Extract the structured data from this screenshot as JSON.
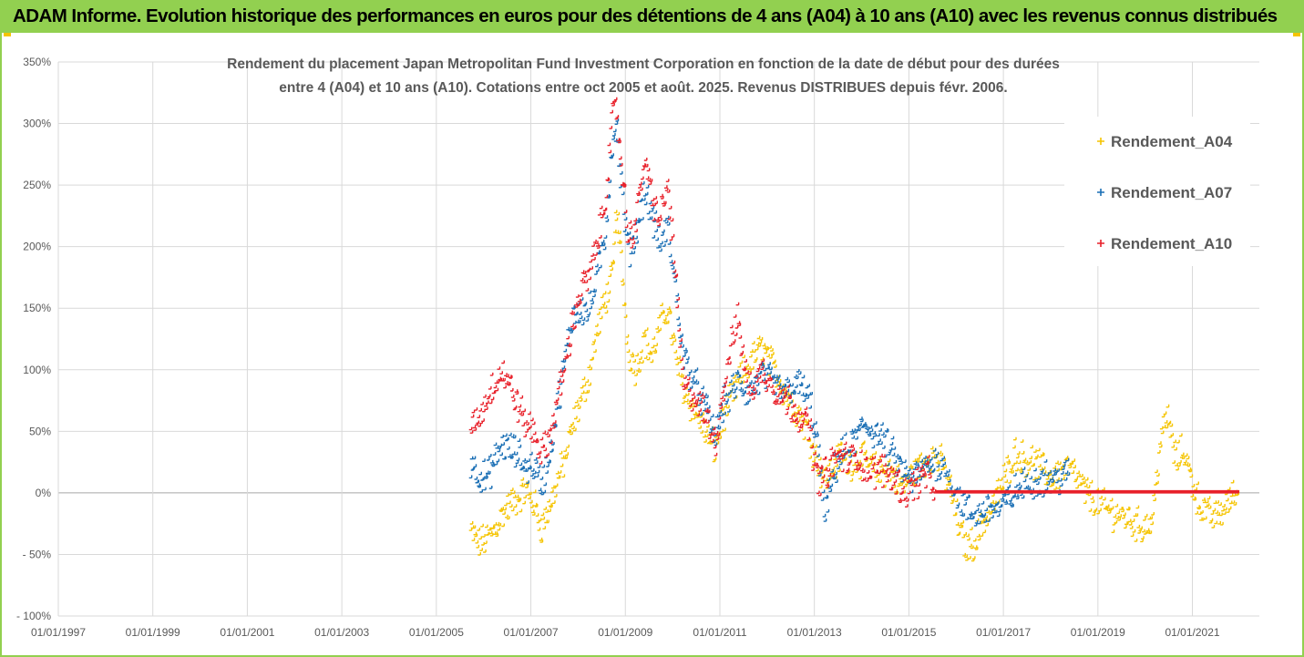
{
  "header": {
    "title": "ADAM Informe. Evolution historique des performances en euros pour des détentions de 4 ans (A04) à 10 ans (A10) avec les revenus connus distribués"
  },
  "chart_data": {
    "type": "scatter",
    "title_lines": [
      "Rendement du placement Japan Metropolitan Fund Investment Corporation en fonction de la date de début pour des durées",
      "entre 4 (A04) et 10 ans (A10).  Cotations entre oct 2005 et août. 2025. Revenus DISTRIBUES depuis févr. 2006."
    ],
    "xlabel": "",
    "ylabel": "",
    "x_range": [
      "1997-01-01",
      "2022-06-01"
    ],
    "x_ticks": [
      "01/01/1997",
      "01/01/1999",
      "01/01/2001",
      "01/01/2003",
      "01/01/2005",
      "01/01/2007",
      "01/01/2009",
      "01/01/2011",
      "01/01/2013",
      "01/01/2015",
      "01/01/2017",
      "01/01/2019",
      "01/01/2021"
    ],
    "y_range": [
      -100,
      350
    ],
    "y_ticks": [
      "- 100%",
      "- 50%",
      "0%",
      "50%",
      "100%",
      "150%",
      "200%",
      "250%",
      "300%",
      "350%"
    ],
    "grid": true,
    "legend_position": "right",
    "marker": "cross",
    "series": [
      {
        "name": "Rendement_A04",
        "color": "#f5c400",
        "points": [
          [
            "2005-10",
            -32
          ],
          [
            "2005-12",
            -42
          ],
          [
            "2006-02",
            -38
          ],
          [
            "2006-04",
            -30
          ],
          [
            "2006-06",
            -18
          ],
          [
            "2006-08",
            -10
          ],
          [
            "2006-10",
            -5
          ],
          [
            "2006-12",
            2
          ],
          [
            "2007-02",
            -10
          ],
          [
            "2007-04",
            -28
          ],
          [
            "2007-06",
            -12
          ],
          [
            "2007-08",
            10
          ],
          [
            "2007-10",
            28
          ],
          [
            "2007-12",
            55
          ],
          [
            "2008-02",
            75
          ],
          [
            "2008-04",
            95
          ],
          [
            "2008-06",
            130
          ],
          [
            "2008-08",
            155
          ],
          [
            "2008-10",
            175
          ],
          [
            "2008-11",
            230
          ],
          [
            "2008-12",
            195
          ],
          [
            "2009-02",
            115
          ],
          [
            "2009-04",
            100
          ],
          [
            "2009-06",
            125
          ],
          [
            "2009-08",
            110
          ],
          [
            "2009-10",
            135
          ],
          [
            "2009-12",
            150
          ],
          [
            "2010-02",
            110
          ],
          [
            "2010-04",
            85
          ],
          [
            "2010-06",
            70
          ],
          [
            "2010-08",
            60
          ],
          [
            "2010-10",
            45
          ],
          [
            "2010-12",
            35
          ],
          [
            "2011-02",
            60
          ],
          [
            "2011-04",
            75
          ],
          [
            "2011-06",
            90
          ],
          [
            "2011-08",
            100
          ],
          [
            "2011-10",
            110
          ],
          [
            "2011-12",
            118
          ],
          [
            "2012-02",
            105
          ],
          [
            "2012-04",
            95
          ],
          [
            "2012-06",
            80
          ],
          [
            "2012-08",
            70
          ],
          [
            "2012-10",
            60
          ],
          [
            "2012-12",
            45
          ],
          [
            "2013-02",
            25
          ],
          [
            "2013-04",
            10
          ],
          [
            "2013-06",
            20
          ],
          [
            "2013-08",
            30
          ],
          [
            "2013-10",
            22
          ],
          [
            "2013-12",
            28
          ],
          [
            "2014-02",
            25
          ],
          [
            "2014-04",
            20
          ],
          [
            "2014-06",
            15
          ],
          [
            "2014-08",
            20
          ],
          [
            "2014-10",
            10
          ],
          [
            "2014-12",
            5
          ],
          [
            "2015-02",
            15
          ],
          [
            "2015-04",
            20
          ],
          [
            "2015-06",
            28
          ],
          [
            "2015-08",
            30
          ],
          [
            "2015-10",
            20
          ],
          [
            "2015-12",
            0
          ],
          [
            "2016-02",
            -30
          ],
          [
            "2016-04",
            -45
          ],
          [
            "2016-06",
            -40
          ],
          [
            "2016-08",
            -25
          ],
          [
            "2016-10",
            -15
          ],
          [
            "2016-12",
            0
          ],
          [
            "2017-02",
            15
          ],
          [
            "2017-04",
            32
          ],
          [
            "2017-06",
            28
          ],
          [
            "2017-08",
            25
          ],
          [
            "2017-10",
            22
          ],
          [
            "2017-12",
            15
          ],
          [
            "2018-02",
            12
          ],
          [
            "2018-04",
            18
          ],
          [
            "2018-06",
            20
          ],
          [
            "2018-08",
            10
          ],
          [
            "2018-10",
            0
          ],
          [
            "2018-12",
            -5
          ],
          [
            "2019-04",
            -15
          ],
          [
            "2019-08",
            -20
          ],
          [
            "2019-12",
            -28
          ],
          [
            "2020-03",
            -25
          ],
          [
            "2020-05",
            40
          ],
          [
            "2020-07",
            62
          ],
          [
            "2020-09",
            25
          ],
          [
            "2020-11",
            35
          ],
          [
            "2021-01",
            10
          ],
          [
            "2021-03",
            -10
          ],
          [
            "2021-05",
            -18
          ],
          [
            "2021-07",
            -20
          ],
          [
            "2021-09",
            -15
          ],
          [
            "2021-11",
            -5
          ],
          [
            "2022-01",
            0
          ]
        ]
      },
      {
        "name": "Rendement_A07",
        "color": "#1a6fb5",
        "points": [
          [
            "2005-10",
            25
          ],
          [
            "2005-12",
            15
          ],
          [
            "2006-02",
            10
          ],
          [
            "2006-04",
            25
          ],
          [
            "2006-06",
            38
          ],
          [
            "2006-08",
            35
          ],
          [
            "2006-10",
            30
          ],
          [
            "2006-12",
            20
          ],
          [
            "2007-02",
            22
          ],
          [
            "2007-04",
            5
          ],
          [
            "2007-06",
            30
          ],
          [
            "2007-08",
            70
          ],
          [
            "2007-10",
            110
          ],
          [
            "2007-12",
            145
          ],
          [
            "2008-02",
            150
          ],
          [
            "2008-04",
            145
          ],
          [
            "2008-06",
            175
          ],
          [
            "2008-08",
            205
          ],
          [
            "2008-10",
            285
          ],
          [
            "2008-11",
            300
          ],
          [
            "2008-12",
            255
          ],
          [
            "2009-02",
            195
          ],
          [
            "2009-04",
            210
          ],
          [
            "2009-06",
            245
          ],
          [
            "2009-08",
            225
          ],
          [
            "2009-10",
            200
          ],
          [
            "2009-12",
            215
          ],
          [
            "2010-02",
            165
          ],
          [
            "2010-04",
            110
          ],
          [
            "2010-06",
            95
          ],
          [
            "2010-08",
            80
          ],
          [
            "2010-10",
            65
          ],
          [
            "2010-12",
            45
          ],
          [
            "2011-02",
            70
          ],
          [
            "2011-04",
            80
          ],
          [
            "2011-06",
            90
          ],
          [
            "2011-08",
            80
          ],
          [
            "2011-10",
            85
          ],
          [
            "2011-12",
            95
          ],
          [
            "2012-02",
            90
          ],
          [
            "2012-04",
            85
          ],
          [
            "2012-06",
            80
          ],
          [
            "2012-08",
            88
          ],
          [
            "2012-10",
            85
          ],
          [
            "2012-12",
            75
          ],
          [
            "2013-02",
            40
          ],
          [
            "2013-04",
            -20
          ],
          [
            "2013-06",
            15
          ],
          [
            "2013-08",
            30
          ],
          [
            "2013-10",
            35
          ],
          [
            "2013-12",
            45
          ],
          [
            "2014-02",
            55
          ],
          [
            "2014-04",
            50
          ],
          [
            "2014-06",
            45
          ],
          [
            "2014-08",
            35
          ],
          [
            "2014-10",
            25
          ],
          [
            "2014-12",
            15
          ],
          [
            "2015-02",
            10
          ],
          [
            "2015-04",
            15
          ],
          [
            "2015-06",
            22
          ],
          [
            "2015-08",
            25
          ],
          [
            "2015-10",
            20
          ],
          [
            "2015-12",
            8
          ],
          [
            "2016-02",
            -5
          ],
          [
            "2016-04",
            -15
          ],
          [
            "2016-06",
            -20
          ],
          [
            "2016-08",
            -15
          ],
          [
            "2016-10",
            -12
          ],
          [
            "2016-12",
            -15
          ],
          [
            "2017-02",
            -8
          ],
          [
            "2017-04",
            0
          ],
          [
            "2017-06",
            5
          ],
          [
            "2017-08",
            8
          ],
          [
            "2017-10",
            10
          ],
          [
            "2017-12",
            12
          ],
          [
            "2018-02",
            10
          ],
          [
            "2018-04",
            12
          ],
          [
            "2018-06",
            15
          ]
        ]
      },
      {
        "name": "Rendement_A10",
        "color": "#e8202a",
        "points": [
          [
            "2005-10",
            55
          ],
          [
            "2005-12",
            60
          ],
          [
            "2006-02",
            75
          ],
          [
            "2006-04",
            90
          ],
          [
            "2006-06",
            98
          ],
          [
            "2006-08",
            85
          ],
          [
            "2006-10",
            70
          ],
          [
            "2006-12",
            55
          ],
          [
            "2007-02",
            50
          ],
          [
            "2007-04",
            30
          ],
          [
            "2007-06",
            45
          ],
          [
            "2007-08",
            75
          ],
          [
            "2007-10",
            105
          ],
          [
            "2007-12",
            140
          ],
          [
            "2008-02",
            165
          ],
          [
            "2008-04",
            175
          ],
          [
            "2008-06",
            200
          ],
          [
            "2008-08",
            235
          ],
          [
            "2008-10",
            305
          ],
          [
            "2008-11",
            310
          ],
          [
            "2008-12",
            275
          ],
          [
            "2009-02",
            205
          ],
          [
            "2009-04",
            220
          ],
          [
            "2009-06",
            270
          ],
          [
            "2009-08",
            240
          ],
          [
            "2009-10",
            220
          ],
          [
            "2009-12",
            250
          ],
          [
            "2010-02",
            175
          ],
          [
            "2010-04",
            85
          ],
          [
            "2010-06",
            80
          ],
          [
            "2010-08",
            70
          ],
          [
            "2010-10",
            60
          ],
          [
            "2010-12",
            40
          ],
          [
            "2011-02",
            80
          ],
          [
            "2011-04",
            120
          ],
          [
            "2011-06",
            140
          ],
          [
            "2011-08",
            90
          ],
          [
            "2011-10",
            85
          ],
          [
            "2011-12",
            100
          ],
          [
            "2012-02",
            90
          ],
          [
            "2012-04",
            80
          ],
          [
            "2012-06",
            75
          ],
          [
            "2012-08",
            70
          ],
          [
            "2012-10",
            60
          ],
          [
            "2012-12",
            52
          ],
          [
            "2013-02",
            10
          ],
          [
            "2013-04",
            15
          ],
          [
            "2013-06",
            25
          ],
          [
            "2013-08",
            30
          ],
          [
            "2013-10",
            25
          ],
          [
            "2013-12",
            30
          ],
          [
            "2014-02",
            20
          ],
          [
            "2014-04",
            15
          ],
          [
            "2014-06",
            20
          ],
          [
            "2014-08",
            15
          ],
          [
            "2014-10",
            10
          ],
          [
            "2014-12",
            0
          ],
          [
            "2015-02",
            5
          ],
          [
            "2015-04",
            10
          ],
          [
            "2015-06",
            15
          ],
          [
            "2015-08",
            0
          ],
          [
            "2015-10",
            0
          ],
          [
            "2016-06",
            0
          ],
          [
            "2017-06",
            0
          ],
          [
            "2018-06",
            0
          ],
          [
            "2019-06",
            0
          ],
          [
            "2020-06",
            0
          ],
          [
            "2021-06",
            0
          ],
          [
            "2022-01",
            0
          ]
        ]
      }
    ]
  }
}
